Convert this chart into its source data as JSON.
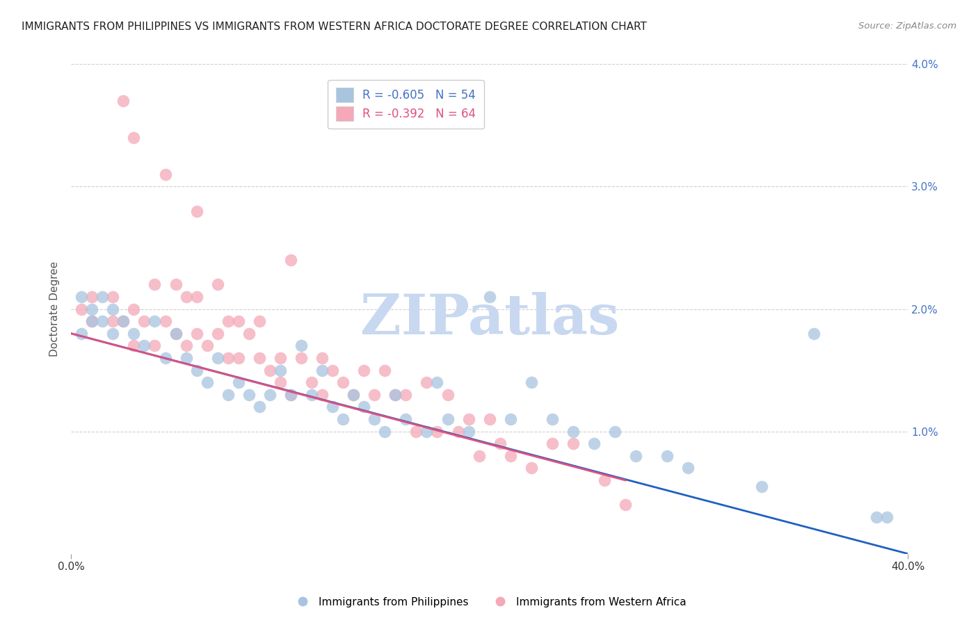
{
  "title": "IMMIGRANTS FROM PHILIPPINES VS IMMIGRANTS FROM WESTERN AFRICA DOCTORATE DEGREE CORRELATION CHART",
  "source": "Source: ZipAtlas.com",
  "ylabel": "Doctorate Degree",
  "xlim": [
    0.0,
    0.4
  ],
  "ylim": [
    0.0,
    0.04
  ],
  "xticks": [
    0.0,
    0.4
  ],
  "xtick_labels": [
    "0.0%",
    "40.0%"
  ],
  "yticks": [
    0.0,
    0.01,
    0.02,
    0.03,
    0.04
  ],
  "ytick_labels_right": [
    "",
    "1.0%",
    "2.0%",
    "3.0%",
    "4.0%"
  ],
  "legend1_label": "Immigrants from Philippines",
  "legend2_label": "Immigrants from Western Africa",
  "R1": -0.605,
  "N1": 54,
  "R2": -0.392,
  "N2": 64,
  "blue_color": "#a8c4e0",
  "pink_color": "#f4a8b8",
  "blue_line_color": "#2060c0",
  "pink_line_color": "#e05080",
  "watermark": "ZIPatlas",
  "watermark_color": "#c8d8f0",
  "blue_line_x0": 0.0,
  "blue_line_y0": 0.018,
  "blue_line_x1": 0.4,
  "blue_line_y1": 0.0,
  "pink_line_x0": 0.0,
  "pink_line_y0": 0.018,
  "pink_line_x1": 0.265,
  "pink_line_y1": 0.006,
  "blue_scatter_x": [
    0.005,
    0.01,
    0.015,
    0.015,
    0.02,
    0.005,
    0.01,
    0.02,
    0.025,
    0.03,
    0.035,
    0.04,
    0.045,
    0.05,
    0.055,
    0.06,
    0.065,
    0.07,
    0.075,
    0.08,
    0.085,
    0.09,
    0.095,
    0.1,
    0.105,
    0.11,
    0.115,
    0.12,
    0.125,
    0.13,
    0.135,
    0.14,
    0.145,
    0.15,
    0.155,
    0.16,
    0.17,
    0.175,
    0.18,
    0.19,
    0.2,
    0.21,
    0.22,
    0.23,
    0.24,
    0.25,
    0.26,
    0.27,
    0.285,
    0.295,
    0.33,
    0.355,
    0.385,
    0.39
  ],
  "blue_scatter_y": [
    0.021,
    0.02,
    0.021,
    0.019,
    0.02,
    0.018,
    0.019,
    0.018,
    0.019,
    0.018,
    0.017,
    0.019,
    0.016,
    0.018,
    0.016,
    0.015,
    0.014,
    0.016,
    0.013,
    0.014,
    0.013,
    0.012,
    0.013,
    0.015,
    0.013,
    0.017,
    0.013,
    0.015,
    0.012,
    0.011,
    0.013,
    0.012,
    0.011,
    0.01,
    0.013,
    0.011,
    0.01,
    0.014,
    0.011,
    0.01,
    0.021,
    0.011,
    0.014,
    0.011,
    0.01,
    0.009,
    0.01,
    0.008,
    0.008,
    0.007,
    0.0055,
    0.018,
    0.003,
    0.003
  ],
  "pink_scatter_x": [
    0.005,
    0.01,
    0.01,
    0.02,
    0.02,
    0.025,
    0.025,
    0.03,
    0.03,
    0.035,
    0.04,
    0.04,
    0.045,
    0.045,
    0.05,
    0.05,
    0.055,
    0.055,
    0.06,
    0.06,
    0.065,
    0.07,
    0.07,
    0.075,
    0.075,
    0.08,
    0.08,
    0.085,
    0.09,
    0.09,
    0.095,
    0.1,
    0.1,
    0.105,
    0.11,
    0.115,
    0.12,
    0.12,
    0.125,
    0.13,
    0.135,
    0.14,
    0.145,
    0.15,
    0.155,
    0.16,
    0.165,
    0.17,
    0.175,
    0.18,
    0.185,
    0.19,
    0.195,
    0.2,
    0.205,
    0.21,
    0.22,
    0.23,
    0.24,
    0.255,
    0.265,
    0.03,
    0.06,
    0.105
  ],
  "pink_scatter_y": [
    0.02,
    0.021,
    0.019,
    0.021,
    0.019,
    0.037,
    0.019,
    0.02,
    0.017,
    0.019,
    0.022,
    0.017,
    0.031,
    0.019,
    0.022,
    0.018,
    0.021,
    0.017,
    0.021,
    0.018,
    0.017,
    0.022,
    0.018,
    0.019,
    0.016,
    0.019,
    0.016,
    0.018,
    0.019,
    0.016,
    0.015,
    0.016,
    0.014,
    0.013,
    0.016,
    0.014,
    0.016,
    0.013,
    0.015,
    0.014,
    0.013,
    0.015,
    0.013,
    0.015,
    0.013,
    0.013,
    0.01,
    0.014,
    0.01,
    0.013,
    0.01,
    0.011,
    0.008,
    0.011,
    0.009,
    0.008,
    0.007,
    0.009,
    0.009,
    0.006,
    0.004,
    0.034,
    0.028,
    0.024
  ]
}
